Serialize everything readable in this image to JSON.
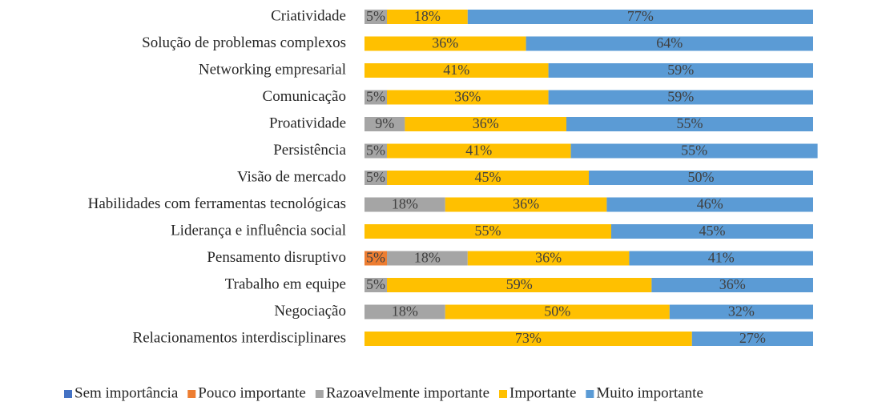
{
  "chart_data": {
    "type": "stacked-bar-horizontal",
    "categories": [
      "Criatividade",
      "Solução de problemas complexos",
      "Networking empresarial",
      "Comunicação",
      "Proatividade",
      "Persistência",
      "Visão de mercado",
      "Habilidades com ferramentas tecnológicas",
      "Liderança e influência social",
      "Pensamento disruptivo",
      "Trabalho em equipe",
      "Negociação",
      "Relacionamentos interdisciplinares"
    ],
    "series": [
      {
        "name": "Sem importância",
        "color": "#4472c4",
        "values": [
          null,
          null,
          null,
          null,
          null,
          null,
          null,
          null,
          null,
          null,
          null,
          null,
          null
        ],
        "value_labels": [
          null,
          null,
          null,
          null,
          null,
          null,
          null,
          null,
          null,
          null,
          null,
          null,
          null
        ]
      },
      {
        "name": "Pouco importante",
        "color": "#ed7d31",
        "values": [
          null,
          null,
          null,
          null,
          null,
          null,
          null,
          null,
          null,
          5,
          null,
          null,
          null
        ],
        "value_labels": [
          null,
          null,
          null,
          null,
          null,
          null,
          null,
          null,
          null,
          "5%",
          null,
          null,
          null
        ]
      },
      {
        "name": "Razoavelmente importante",
        "color": "#a5a5a5",
        "values": [
          5,
          null,
          null,
          5,
          9,
          5,
          5,
          18,
          null,
          18,
          5,
          18,
          null
        ],
        "value_labels": [
          "5%",
          null,
          null,
          "5%",
          "9%",
          "5%",
          "5%",
          "18%",
          null,
          "18%",
          "5%",
          "18%",
          null
        ]
      },
      {
        "name": "Importante",
        "color": "#ffc000",
        "values": [
          18,
          36,
          41,
          36,
          36,
          41,
          45,
          36,
          55,
          36,
          59,
          50,
          73
        ],
        "value_labels": [
          "18%",
          "36%",
          "41%",
          "36%",
          "36%",
          "41%",
          "45%",
          "36%",
          "55%",
          "36%",
          "59%",
          "50%",
          "73%"
        ]
      },
      {
        "name": "Muito importante",
        "color": "#5b9bd5",
        "values": [
          77,
          64,
          59,
          59,
          55,
          55,
          50,
          46,
          45,
          41,
          36,
          32,
          27
        ],
        "value_labels": [
          "77%",
          "64%",
          "59%",
          "59%",
          "55%",
          "55%",
          "50%",
          "46%",
          "45%",
          "41%",
          "36%",
          "32%",
          "27%"
        ]
      }
    ],
    "xlim": [
      0,
      100
    ],
    "legend": "bottom"
  }
}
